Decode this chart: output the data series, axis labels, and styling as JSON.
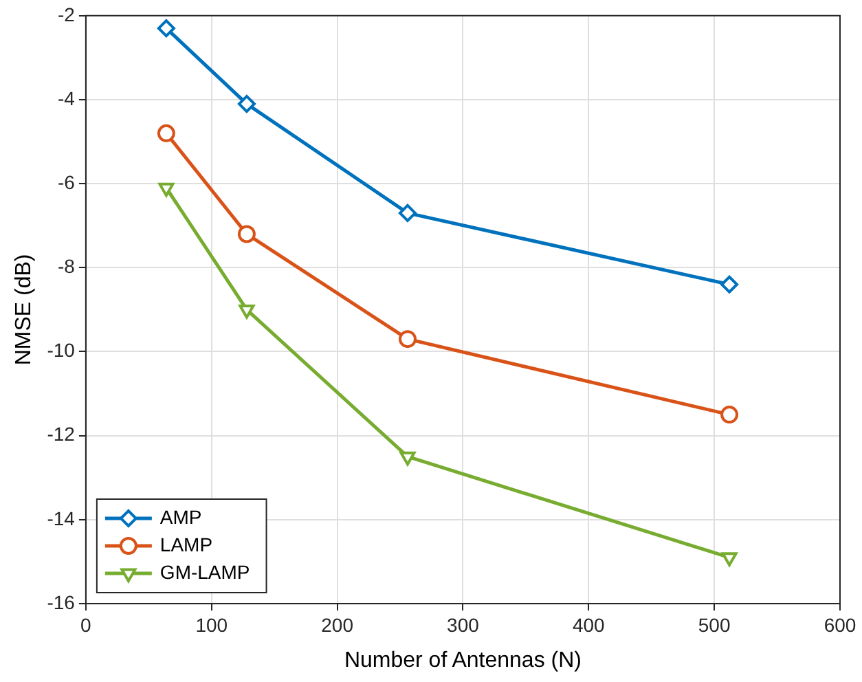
{
  "chart_data": {
    "type": "line",
    "xlabel": "Number of Antennas (N)",
    "ylabel": "NMSE (dB)",
    "x": [
      64,
      128,
      256,
      512
    ],
    "series": [
      {
        "name": "AMP",
        "color": "#0072bd",
        "values": [
          -2.3,
          -4.1,
          -6.7,
          -8.4
        ],
        "marker": "diamond"
      },
      {
        "name": "LAMP",
        "color": "#d95319",
        "values": [
          -4.8,
          -7.2,
          -9.7,
          -11.5
        ],
        "marker": "circle"
      },
      {
        "name": "GM-LAMP",
        "color": "#77ac30",
        "values": [
          -6.1,
          -9.0,
          -12.5,
          -14.9
        ],
        "marker": "triangle"
      }
    ],
    "xlim": [
      0,
      600
    ],
    "xticks": [
      0,
      100,
      200,
      300,
      400,
      500,
      600
    ],
    "ylim": [
      -16,
      -2
    ],
    "yticks": [
      -16,
      -14,
      -12,
      -10,
      -8,
      -6,
      -4,
      -2
    ],
    "grid": true,
    "legend": "bottom left",
    "line_style": "solid"
  }
}
